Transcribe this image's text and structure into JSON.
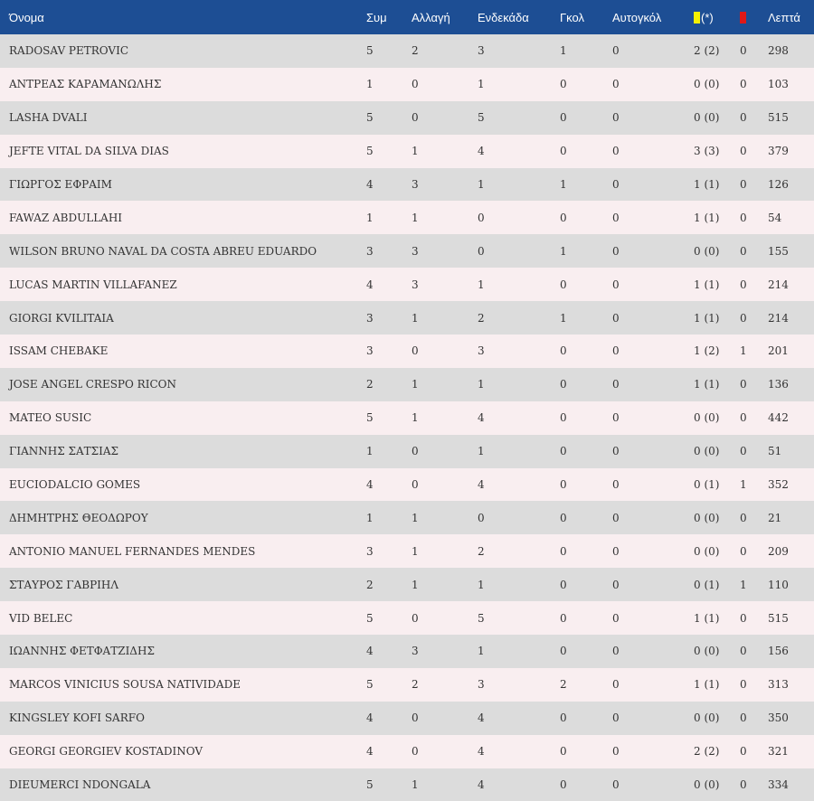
{
  "table": {
    "headers": {
      "name": "Όνομα",
      "apps": "Συμ",
      "sub": "Αλλαγή",
      "start": "Ενδεκάδα",
      "goals": "Γκολ",
      "own_goals": "Αυτογκόλ",
      "yellow_suffix": "(*)",
      "minutes": "Λεπτά"
    },
    "colors": {
      "header_bg": "#1d4e94",
      "row_a": "#dcdcdc",
      "row_b": "#f9eef0",
      "yellow": "#f5f000",
      "red": "#e01818"
    },
    "icons": {
      "yellow": "yellow-card-icon",
      "red": "red-card-icon"
    },
    "rows": [
      {
        "name": "RADOSAV PETROVIC",
        "apps": "5",
        "sub": "2",
        "start": "3",
        "goals": "1",
        "own_goals": "0",
        "yellow": "2 (2)",
        "red": "0",
        "minutes": "298"
      },
      {
        "name": "ΑΝΤΡΕΑΣ ΚΑΡΑΜΑΝΩΛΗΣ",
        "apps": "1",
        "sub": "0",
        "start": "1",
        "goals": "0",
        "own_goals": "0",
        "yellow": "0 (0)",
        "red": "0",
        "minutes": "103"
      },
      {
        "name": "LASHA DVALI",
        "apps": "5",
        "sub": "0",
        "start": "5",
        "goals": "0",
        "own_goals": "0",
        "yellow": "0 (0)",
        "red": "0",
        "minutes": "515"
      },
      {
        "name": "JEFTE VITAL DA SILVA DIAS",
        "apps": "5",
        "sub": "1",
        "start": "4",
        "goals": "0",
        "own_goals": "0",
        "yellow": "3 (3)",
        "red": "0",
        "minutes": "379"
      },
      {
        "name": "ΓΙΩΡΓΟΣ ΕΦΡΑΙΜ",
        "apps": "4",
        "sub": "3",
        "start": "1",
        "goals": "1",
        "own_goals": "0",
        "yellow": "1 (1)",
        "red": "0",
        "minutes": "126"
      },
      {
        "name": "FAWAZ ABDULLAHI",
        "apps": "1",
        "sub": "1",
        "start": "0",
        "goals": "0",
        "own_goals": "0",
        "yellow": "1 (1)",
        "red": "0",
        "minutes": "54"
      },
      {
        "name": "WILSON BRUNO NAVAL DA COSTA ABREU EDUARDO",
        "apps": "3",
        "sub": "3",
        "start": "0",
        "goals": "1",
        "own_goals": "0",
        "yellow": "0 (0)",
        "red": "0",
        "minutes": "155"
      },
      {
        "name": "LUCAS MARTIN VILLAFANEZ",
        "apps": "4",
        "sub": "3",
        "start": "1",
        "goals": "0",
        "own_goals": "0",
        "yellow": "1 (1)",
        "red": "0",
        "minutes": "214"
      },
      {
        "name": "GIORGI KVILITAIA",
        "apps": "3",
        "sub": "1",
        "start": "2",
        "goals": "1",
        "own_goals": "0",
        "yellow": "1 (1)",
        "red": "0",
        "minutes": "214"
      },
      {
        "name": "ISSAM CHEBAKE",
        "apps": "3",
        "sub": "0",
        "start": "3",
        "goals": "0",
        "own_goals": "0",
        "yellow": "1 (2)",
        "red": "1",
        "minutes": "201"
      },
      {
        "name": "JOSE ANGEL CRESPO RICON",
        "apps": "2",
        "sub": "1",
        "start": "1",
        "goals": "0",
        "own_goals": "0",
        "yellow": "1 (1)",
        "red": "0",
        "minutes": "136"
      },
      {
        "name": "MATEO SUSIC",
        "apps": "5",
        "sub": "1",
        "start": "4",
        "goals": "0",
        "own_goals": "0",
        "yellow": "0 (0)",
        "red": "0",
        "minutes": "442"
      },
      {
        "name": "ΓΙΑΝΝΗΣ ΣΑΤΣΙΑΣ",
        "apps": "1",
        "sub": "0",
        "start": "1",
        "goals": "0",
        "own_goals": "0",
        "yellow": "0 (0)",
        "red": "0",
        "minutes": "51"
      },
      {
        "name": "EUCIODALCIO GOMES",
        "apps": "4",
        "sub": "0",
        "start": "4",
        "goals": "0",
        "own_goals": "0",
        "yellow": "0 (1)",
        "red": "1",
        "minutes": "352"
      },
      {
        "name": "ΔΗΜΗΤΡΗΣ ΘΕΟΔΩΡΟΥ",
        "apps": "1",
        "sub": "1",
        "start": "0",
        "goals": "0",
        "own_goals": "0",
        "yellow": "0 (0)",
        "red": "0",
        "minutes": "21"
      },
      {
        "name": "ANTONIO MANUEL FERNANDES MENDES",
        "apps": "3",
        "sub": "1",
        "start": "2",
        "goals": "0",
        "own_goals": "0",
        "yellow": "0 (0)",
        "red": "0",
        "minutes": "209"
      },
      {
        "name": "ΣΤΑΥΡΟΣ ΓΑΒΡΙΗΛ",
        "apps": "2",
        "sub": "1",
        "start": "1",
        "goals": "0",
        "own_goals": "0",
        "yellow": "0 (1)",
        "red": "1",
        "minutes": "110"
      },
      {
        "name": "VID BELEC",
        "apps": "5",
        "sub": "0",
        "start": "5",
        "goals": "0",
        "own_goals": "0",
        "yellow": "1 (1)",
        "red": "0",
        "minutes": "515"
      },
      {
        "name": "ΙΩΑΝΝΗΣ ΦΕΤΦΑΤΖΙΔΗΣ",
        "apps": "4",
        "sub": "3",
        "start": "1",
        "goals": "0",
        "own_goals": "0",
        "yellow": "0 (0)",
        "red": "0",
        "minutes": "156"
      },
      {
        "name": "MARCOS VINICIUS SOUSA NATIVIDADE",
        "apps": "5",
        "sub": "2",
        "start": "3",
        "goals": "2",
        "own_goals": "0",
        "yellow": "1 (1)",
        "red": "0",
        "minutes": "313"
      },
      {
        "name": "KINGSLEY KOFI SARFO",
        "apps": "4",
        "sub": "0",
        "start": "4",
        "goals": "0",
        "own_goals": "0",
        "yellow": "0 (0)",
        "red": "0",
        "minutes": "350"
      },
      {
        "name": "GEORGI GEORGIEV KOSTADINOV",
        "apps": "4",
        "sub": "0",
        "start": "4",
        "goals": "0",
        "own_goals": "0",
        "yellow": "2 (2)",
        "red": "0",
        "minutes": "321"
      },
      {
        "name": "DIEUMERCI NDONGALA",
        "apps": "5",
        "sub": "1",
        "start": "4",
        "goals": "0",
        "own_goals": "0",
        "yellow": "0 (0)",
        "red": "0",
        "minutes": "334"
      }
    ]
  }
}
